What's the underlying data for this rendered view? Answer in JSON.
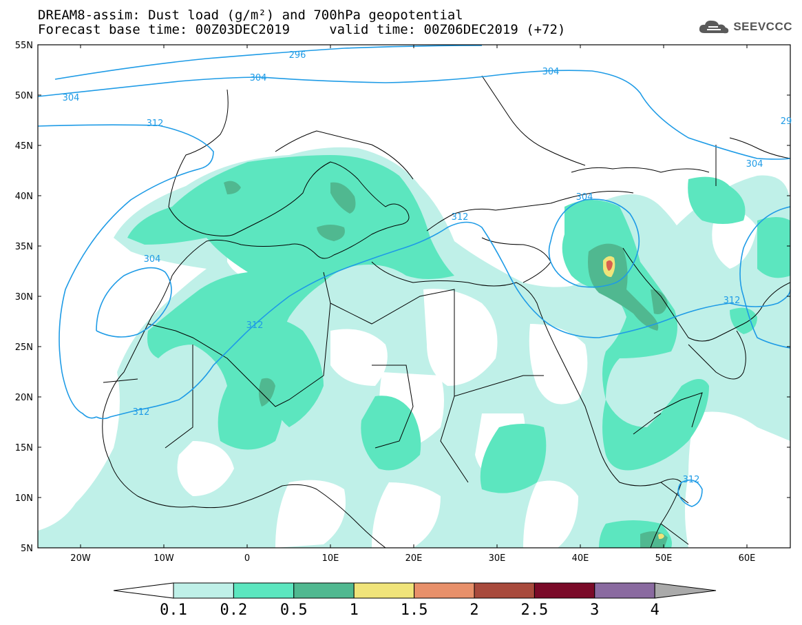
{
  "title": {
    "line1": "DREAM8-assim: Dust load (g/m²) and 700hPa geopotential",
    "line2": "Forecast base time: 00Z03DEC2019     valid time: 00Z06DEC2019 (+72)"
  },
  "logo": {
    "text": "SEEVCCC",
    "icon": "cloud-icon"
  },
  "map": {
    "lat_labels": [
      "55N",
      "50N",
      "45N",
      "40N",
      "35N",
      "30N",
      "25N",
      "20N",
      "15N",
      "10N",
      "5N"
    ],
    "lon_labels": [
      "20W",
      "10W",
      "0",
      "10E",
      "20E",
      "30E",
      "40E",
      "50E",
      "60E"
    ],
    "contour_labels": [
      "296",
      "304",
      "304",
      "304",
      "312",
      "304",
      "312",
      "304",
      "312",
      "312",
      "304",
      "312",
      "312",
      "29",
      "312"
    ]
  },
  "colorbar": {
    "ticks": [
      "0.1",
      "0.2",
      "0.5",
      "1",
      "1.5",
      "2",
      "2.5",
      "3",
      "4"
    ],
    "colors": [
      "#ffffff",
      "#bff0e8",
      "#5ce6bf",
      "#50b890",
      "#f0e47a",
      "#e8906a",
      "#a84a3c",
      "#7a0a28",
      "#8a6aa0",
      "#aaaaaa"
    ]
  },
  "style": {
    "contour_color": "#1e9be6",
    "dust_light": "#bff0e8",
    "dust_mid": "#5ce6bf",
    "dust_dark": "#50b890",
    "dust_yellow": "#f0e47a",
    "dust_red": "#d86050"
  }
}
